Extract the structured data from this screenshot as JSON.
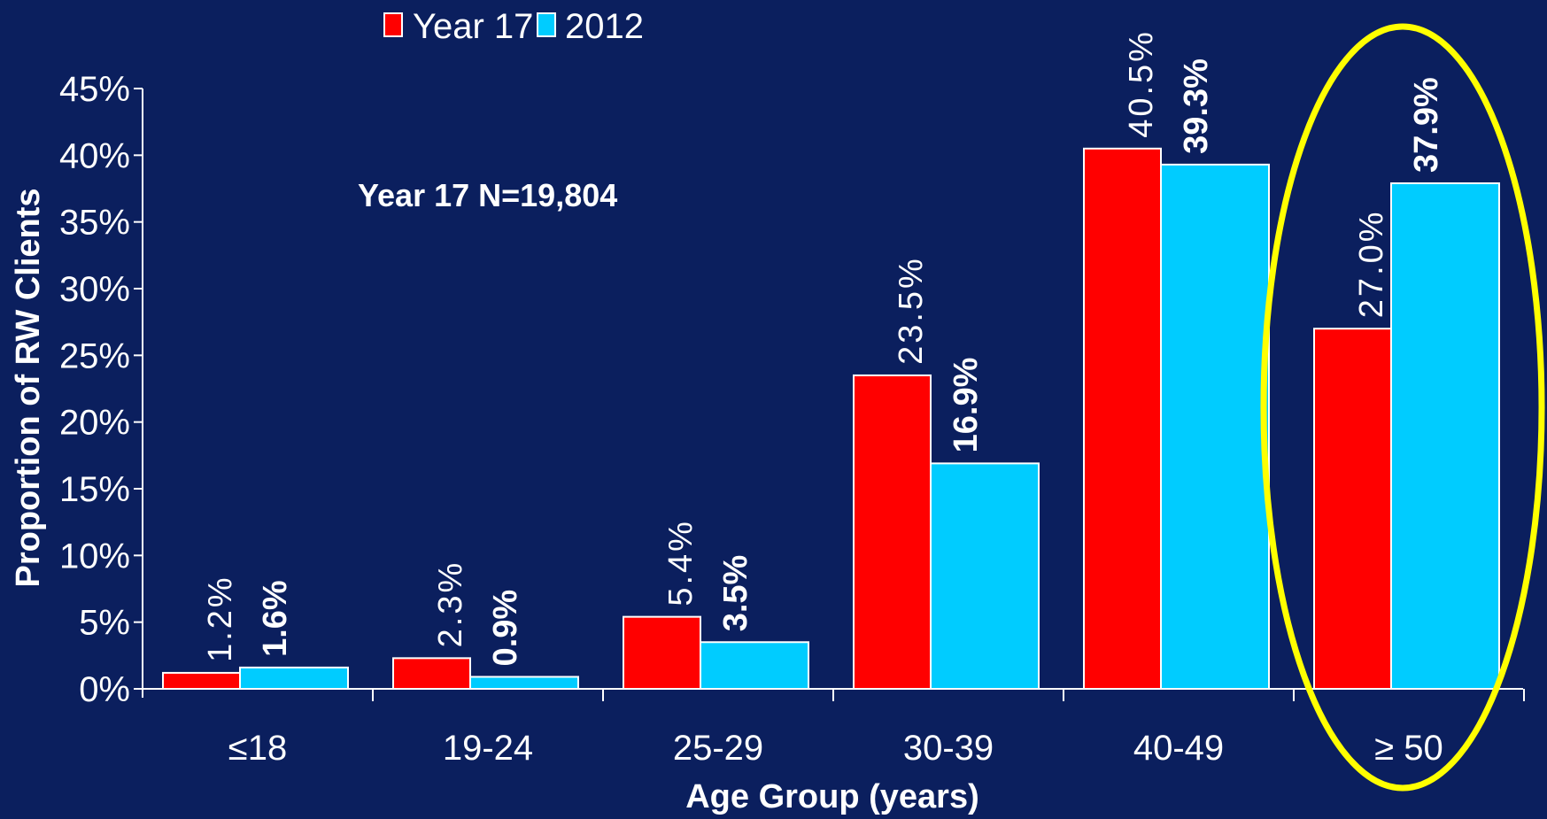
{
  "chart_data": {
    "type": "bar",
    "categories": [
      "≤18",
      "19-24",
      "25-29",
      "30-39",
      "40-49",
      "≥ 50"
    ],
    "series": [
      {
        "name": "Year 17",
        "values": [
          1.2,
          2.3,
          5.4,
          23.5,
          40.5,
          27.0
        ],
        "labels": [
          "1.2%",
          "2.3%",
          "5.4%",
          "23.5%",
          "40.5%",
          "27.0%"
        ],
        "color": "#ff0000"
      },
      {
        "name": "2012",
        "values": [
          1.6,
          0.9,
          3.5,
          16.9,
          39.3,
          37.9
        ],
        "labels": [
          "1.6%",
          "0.9%",
          "3.5%",
          "16.9%",
          "39.3%",
          "37.9%"
        ],
        "color": "#00ccff"
      }
    ],
    "xlabel": "Age Group (years)",
    "ylabel": "Proportion of RW Clients",
    "ylim": [
      0,
      45
    ],
    "yticks": [
      "0%",
      "5%",
      "10%",
      "15%",
      "20%",
      "25%",
      "30%",
      "35%",
      "40%",
      "45%"
    ],
    "annotation": "Year 17 N=19,804",
    "highlight": {
      "category": "≥ 50",
      "shape": "ellipse",
      "color": "#ffff00"
    },
    "legend_position": "top",
    "grid": false,
    "background": "#0b1f5e"
  }
}
